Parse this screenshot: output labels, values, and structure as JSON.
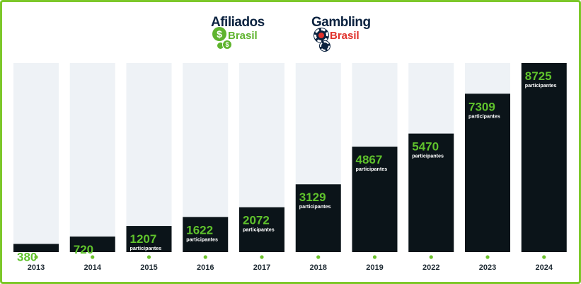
{
  "logos": {
    "afiliados": {
      "main": "Afiliados",
      "sub": "Brasil",
      "icon": "dollar-coins-icon"
    },
    "gambling": {
      "main": "Gambling",
      "sub": "Brasil",
      "icon": "poker-chip-icon"
    }
  },
  "colors": {
    "border": "#7dc82a",
    "bar": "#0b1419",
    "track": "#eef2f6",
    "value_text": "#5fc22c",
    "dot": "#6cc12c"
  },
  "chart_data": {
    "type": "bar",
    "categories": [
      "2013",
      "2014",
      "2015",
      "2016",
      "2017",
      "2018",
      "2019",
      "2022",
      "2023",
      "2024"
    ],
    "values": [
      380,
      720,
      1207,
      1622,
      2072,
      3129,
      4867,
      5470,
      7309,
      8725
    ],
    "value_unit": "participantes",
    "ylim": [
      0,
      8725
    ],
    "grid": false,
    "legend": "none",
    "title": "",
    "xlabel": "",
    "ylabel": ""
  }
}
